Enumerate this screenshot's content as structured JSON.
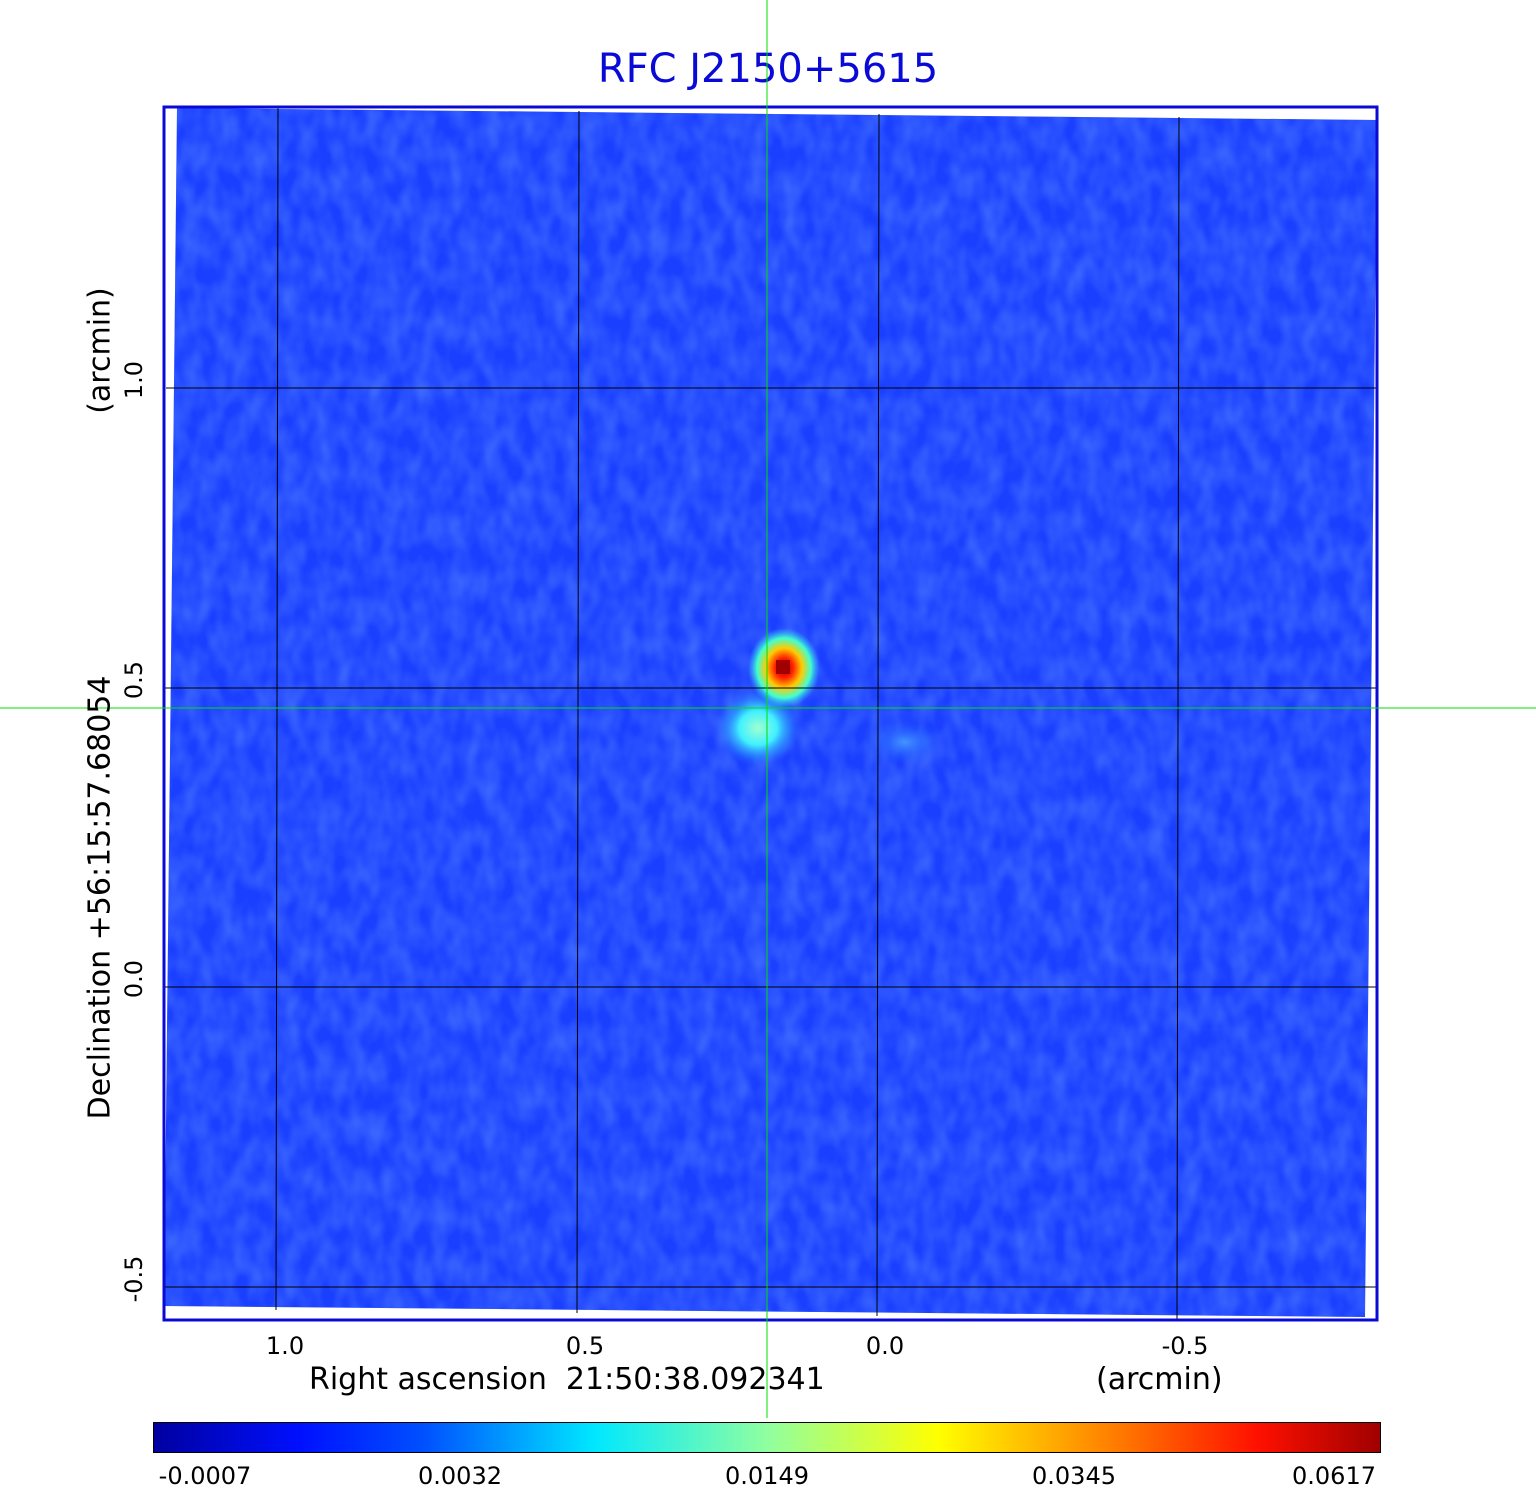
{
  "title": "RFC J2150+5615",
  "x_axis": {
    "label": "Right ascension  21:50:38.092341",
    "unit": "(arcmin)",
    "ticks": [
      "1.0",
      "0.5",
      "0.0",
      "-0.5"
    ]
  },
  "y_axis": {
    "label": "Declination  +56:15:57.68054",
    "unit": "(arcmin)",
    "ticks": [
      "1.0",
      "0.5",
      "0.0",
      "-0.5"
    ]
  },
  "colorbar": {
    "ticks": [
      "-0.0007",
      "0.0032",
      "0.0149",
      "0.0345",
      "0.0617"
    ],
    "colormap": "jet"
  },
  "colors": {
    "title": "#0a0ad6",
    "frame": "#0a0ad6",
    "crosshair": "#00e000",
    "background_field": "#1a3fff"
  },
  "image": {
    "description_kind": "radio map, compact source near center",
    "grid": true,
    "crosshair": true
  }
}
